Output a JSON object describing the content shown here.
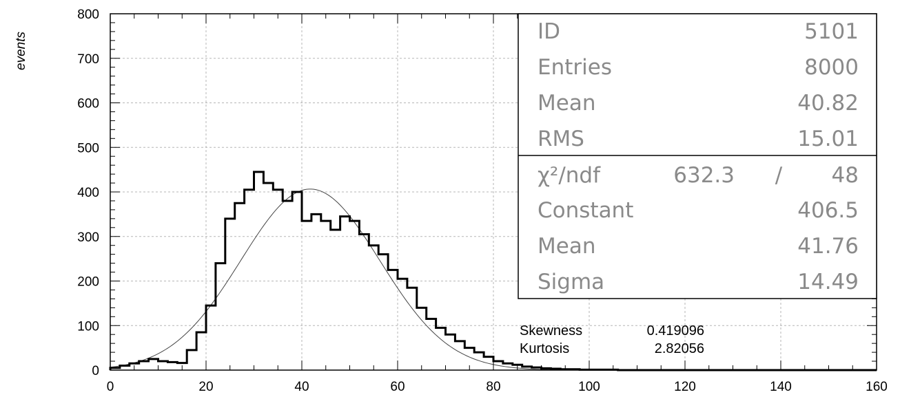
{
  "chart_data": {
    "type": "histogram",
    "ylabel": "events",
    "xlabel": "",
    "xlim": [
      0,
      160
    ],
    "ylim": [
      0,
      800
    ],
    "x_ticks": [
      0,
      20,
      40,
      60,
      80,
      100,
      120,
      140,
      160
    ],
    "y_ticks": [
      0,
      100,
      200,
      300,
      400,
      500,
      600,
      700,
      800
    ],
    "grid": true,
    "bin_width": 2,
    "bin_edges_start": 0,
    "counts": [
      5,
      10,
      15,
      20,
      25,
      20,
      18,
      16,
      45,
      85,
      145,
      240,
      340,
      375,
      405,
      445,
      420,
      405,
      380,
      400,
      335,
      350,
      335,
      315,
      345,
      335,
      305,
      280,
      260,
      225,
      205,
      185,
      140,
      115,
      95,
      80,
      65,
      50,
      40,
      30,
      20,
      15,
      12,
      8,
      6,
      4,
      3,
      2,
      2,
      1,
      1,
      1,
      1,
      0,
      0,
      0,
      0,
      0,
      0,
      0,
      0,
      0,
      0,
      0,
      0,
      0,
      0,
      0,
      0,
      0,
      0,
      0,
      0,
      0,
      0,
      0,
      0,
      0,
      0,
      0
    ],
    "fit": {
      "type": "gaussian",
      "constant": 406.5,
      "mean": 41.76,
      "sigma": 14.49
    },
    "stats_box": {
      "rows": [
        {
          "label": "ID",
          "value": "5101"
        },
        {
          "label": "Entries",
          "value": "8000"
        },
        {
          "label": "Mean",
          "value": "40.82"
        },
        {
          "label": "RMS",
          "value": "15.01"
        }
      ],
      "fit_rows": [
        {
          "label": "χ²/ndf",
          "value": "632.3",
          "sep": "/",
          "value2": "48"
        },
        {
          "label": "Constant",
          "value": "406.5"
        },
        {
          "label": "Mean",
          "value": "41.76"
        },
        {
          "label": "Sigma",
          "value": "14.49"
        }
      ]
    },
    "annotations": [
      {
        "label": "Skewness",
        "value": "0.419096"
      },
      {
        "label": "Kurtosis",
        "value": "2.82056"
      }
    ]
  }
}
